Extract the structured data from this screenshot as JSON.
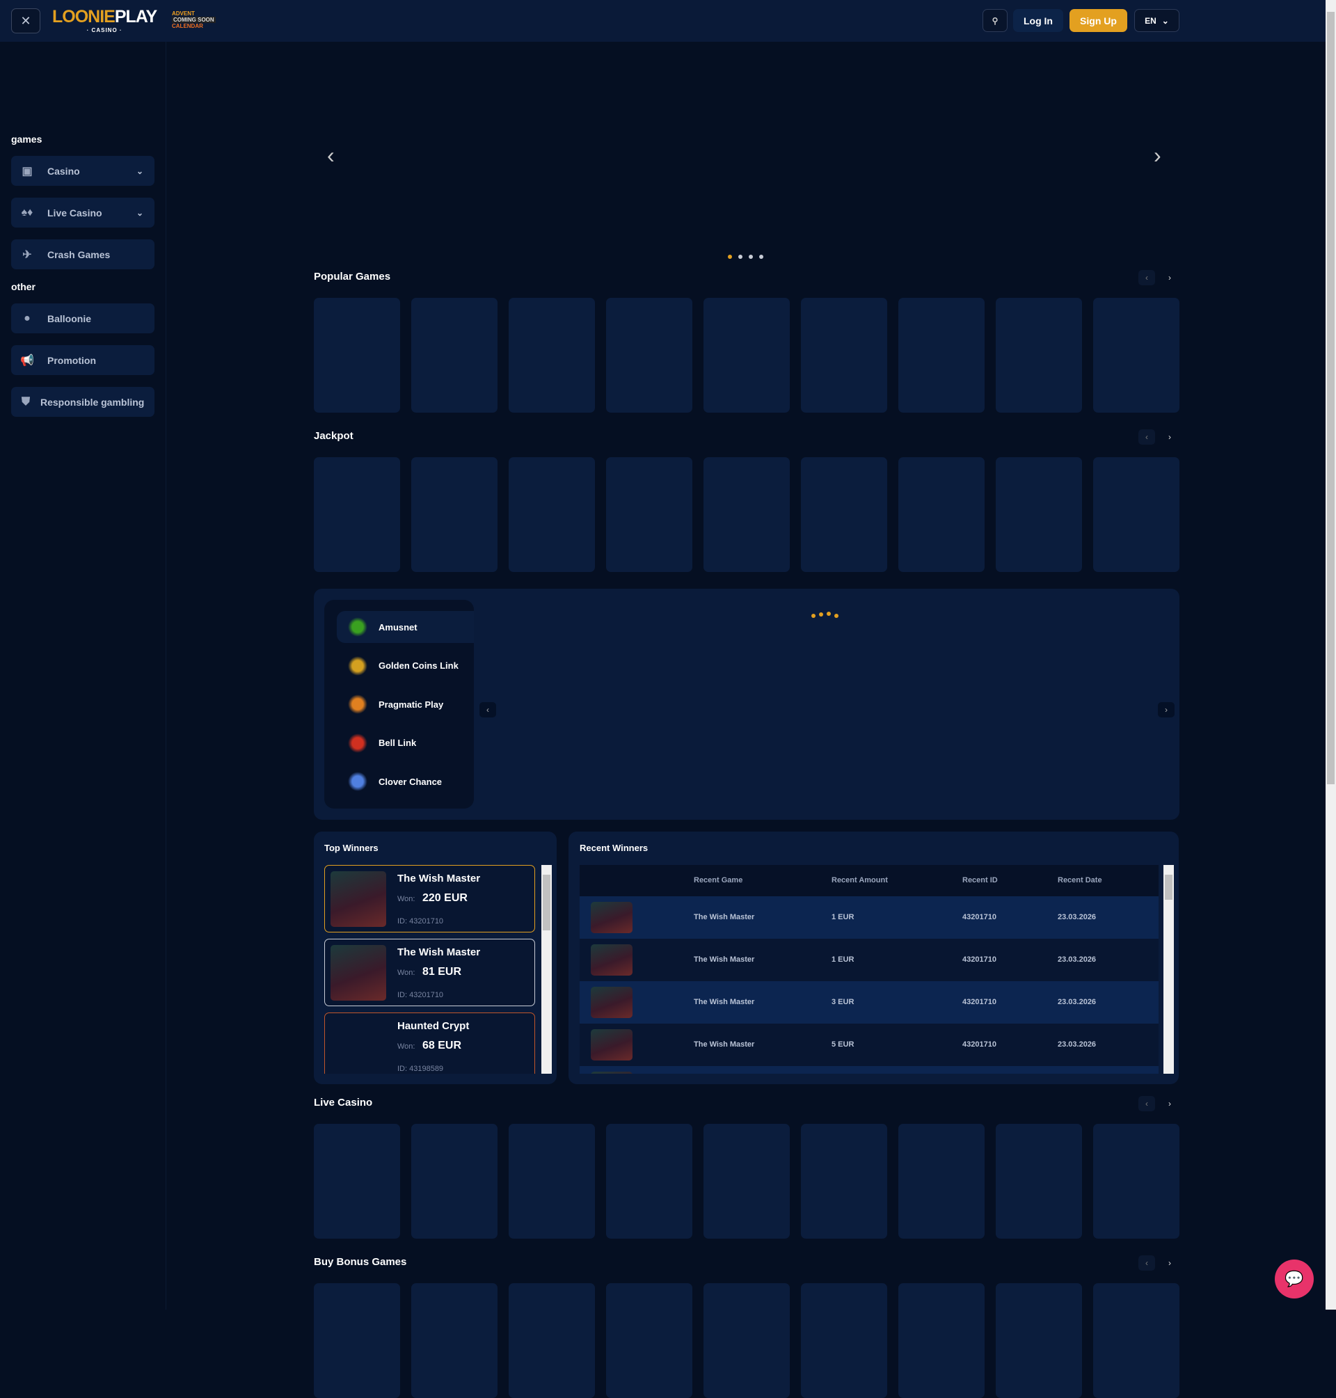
{
  "header": {
    "close_icon": "close-icon",
    "logo": "LOONIEPLAY",
    "logo_sub": "CASINO",
    "advent": "ADVENT COMING SOON CALENDAR",
    "login": "Log In",
    "signup": "Sign Up",
    "language": "EN"
  },
  "colors": {
    "accent": "#e3a020",
    "bg": "#050f22",
    "panel": "#0a1b3a",
    "chat": "#e8336a"
  },
  "sidebar": {
    "games_label": "games",
    "other_label": "other",
    "games": [
      {
        "label": "Casino",
        "icon": "slot-machine-icon"
      },
      {
        "label": "Live Casino",
        "icon": "card-suits-icon"
      },
      {
        "label": "Crash Games",
        "icon": "plane-icon"
      }
    ],
    "other": [
      {
        "label": "Balloonie",
        "icon": "balloon-icon"
      },
      {
        "label": "Promotion",
        "icon": "megaphone-icon"
      },
      {
        "label": "Responsible gambling",
        "icon": "shield-check-icon"
      }
    ]
  },
  "banner": {
    "slides": 4,
    "active": 0
  },
  "sections": {
    "popular": "Popular Games",
    "jackpot": "Jackpot",
    "live": "Live Casino",
    "buybonus": "Buy Bonus Games"
  },
  "providers": [
    "Amusnet",
    "Golden Coins Link",
    "Pragmatic Play",
    "Bell Link",
    "Clover Chance"
  ],
  "top_winners": {
    "title": "Top Winners",
    "won_label": "Won:",
    "items": [
      {
        "game": "The Wish Master",
        "amount": "220 EUR",
        "id": "ID: 43201710"
      },
      {
        "game": "The Wish Master",
        "amount": "81 EUR",
        "id": "ID: 43201710"
      },
      {
        "game": "Haunted Crypt",
        "amount": "68 EUR",
        "id": "ID: 43198589"
      }
    ]
  },
  "recent_winners": {
    "title": "Recent Winners",
    "columns": [
      "Recent Game",
      "Recent Amount",
      "Recent ID",
      "Recent Date"
    ],
    "rows": [
      [
        "The Wish Master",
        "1 EUR",
        "43201710",
        "23.03.2026"
      ],
      [
        "The Wish Master",
        "1 EUR",
        "43201710",
        "23.03.2026"
      ],
      [
        "The Wish Master",
        "3 EUR",
        "43201710",
        "23.03.2026"
      ],
      [
        "The Wish Master",
        "5 EUR",
        "43201710",
        "23.03.2026"
      ]
    ]
  }
}
